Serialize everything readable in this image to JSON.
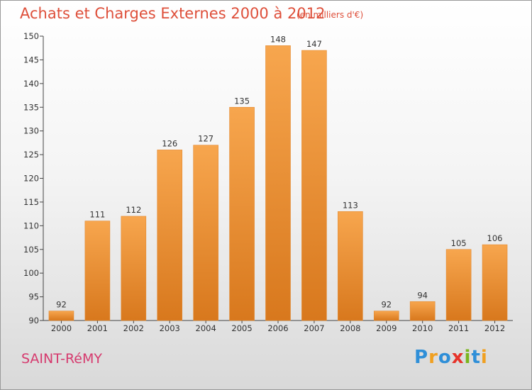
{
  "header": {
    "title": "Achats et Charges Externes 2000 à 2012",
    "subtitle": "(en milliers d'€)"
  },
  "footer": {
    "city": "SAINT-RéMY",
    "brand": [
      "P",
      "r",
      "o",
      "x",
      "i",
      "t",
      "i"
    ]
  },
  "colors": {
    "bar_top": "#f7a64e",
    "bar_bottom": "#d8781d",
    "title": "#de4f3a",
    "city": "#d63a6e"
  },
  "chart_data": {
    "type": "bar",
    "categories": [
      "2000",
      "2001",
      "2002",
      "2003",
      "2004",
      "2005",
      "2006",
      "2007",
      "2008",
      "2009",
      "2010",
      "2011",
      "2012"
    ],
    "values": [
      92,
      111,
      112,
      126,
      127,
      135,
      148,
      147,
      113,
      92,
      94,
      105,
      106
    ],
    "title": "Achats et Charges Externes 2000 à 2012",
    "ylim": [
      90,
      150
    ],
    "yticks": [
      90,
      95,
      100,
      105,
      110,
      115,
      120,
      125,
      130,
      135,
      140,
      145,
      150
    ],
    "grid": false,
    "data_labels": true
  }
}
